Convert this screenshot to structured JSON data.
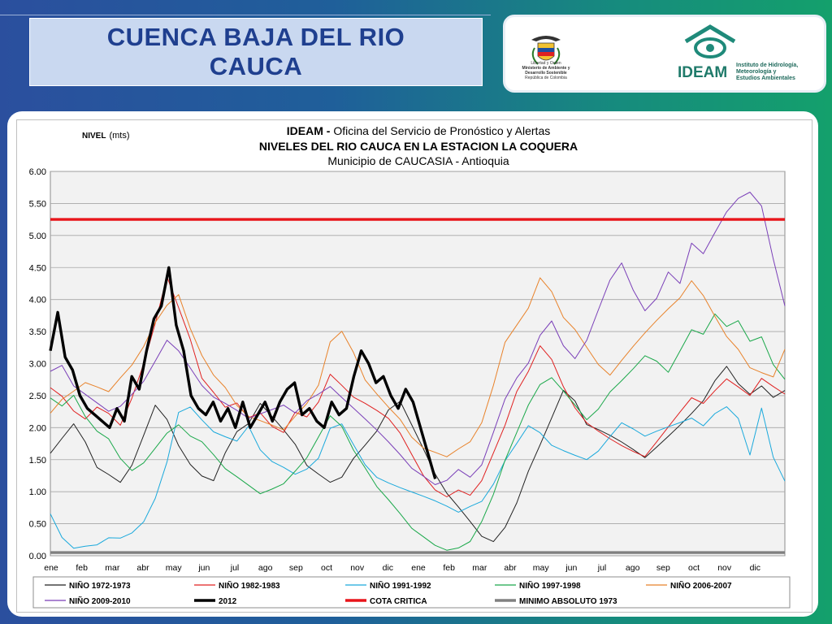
{
  "slide": {
    "title_line1": "CUENCA  BAJA  DEL RIO",
    "title_line2": "CAUCA",
    "logo_left_caption": [
      "Libertad y Orden",
      "Ministerio de Ambiente y",
      "Desarrollo Sostenible",
      "República de Colombia"
    ],
    "logo_right_word": "IDEAM",
    "logo_right_sub": [
      "Instituto de Hidrología,",
      "Meteorología y",
      "Estudios Ambientales"
    ]
  },
  "colors": {
    "title_text": "#1f3f8f",
    "title_box": "#c9d8f0",
    "cota_critica": "#e8141a",
    "series_2012": "#000000"
  },
  "chart_data": {
    "type": "line",
    "title_prefix": "IDEAM - ",
    "title_rest": "Oficina del Servicio de Pronóstico y Alertas",
    "subtitle": "NIVELES DEL RIO CAUCA EN LA ESTACION LA COQUERA",
    "subtitle2": "Municipio de CAUCASIA - Antioquia",
    "ylabel_bold": "NIVEL",
    "ylabel_unit": "(mts)",
    "ylim": [
      0,
      6
    ],
    "yticks": [
      "6.00",
      "5.50",
      "5.00",
      "4.50",
      "4.00",
      "3.50",
      "3.00",
      "2.50",
      "2.00",
      "1.50",
      "1.00",
      "0.50",
      "0.00"
    ],
    "xticks": [
      "ene",
      "feb",
      "mar",
      "abr",
      "may",
      "jun",
      "jul",
      "ago",
      "sep",
      "oct",
      "nov",
      "dic",
      "ene",
      "feb",
      "mar",
      "abr",
      "may",
      "jun",
      "jul",
      "ago",
      "sep",
      "oct",
      "nov",
      "dic"
    ],
    "grid": true,
    "legend_placement": "bottom",
    "series": [
      {
        "name": "NIÑO 1972-1973",
        "color": "#222222",
        "width": 1,
        "values": [
          1.6,
          1.8,
          2.0,
          1.7,
          1.3,
          1.2,
          1.1,
          1.4,
          1.9,
          2.4,
          2.2,
          1.8,
          1.5,
          1.3,
          1.2,
          1.6,
          1.9,
          2.0,
          2.3,
          2.1,
          1.9,
          1.7,
          1.4,
          1.3,
          1.2,
          1.3,
          1.6,
          1.8,
          2.0,
          2.3,
          2.4,
          2.0,
          1.6,
          1.2,
          0.9,
          0.7,
          0.5,
          0.3,
          0.25,
          0.5,
          0.9,
          1.4,
          1.8,
          2.2,
          2.6,
          2.4,
          2.0,
          1.9,
          1.8,
          1.7,
          1.6,
          1.5,
          1.7,
          1.9,
          2.1,
          2.3,
          2.5,
          2.8,
          3.0,
          2.7,
          2.5,
          2.6,
          2.4,
          2.5
        ]
      },
      {
        "name": "NIÑO 1982-1983",
        "color": "#e02020",
        "width": 1,
        "values": [
          2.6,
          2.5,
          2.3,
          2.2,
          2.4,
          2.3,
          2.1,
          2.5,
          3.0,
          3.6,
          4.3,
          3.8,
          3.3,
          2.7,
          2.5,
          2.3,
          2.4,
          2.2,
          2.3,
          2.1,
          2.0,
          2.3,
          2.2,
          2.4,
          2.8,
          2.6,
          2.4,
          2.3,
          2.2,
          2.1,
          1.9,
          1.6,
          1.3,
          1.1,
          1.0,
          1.1,
          1.0,
          1.2,
          1.6,
          2.0,
          2.5,
          2.8,
          3.2,
          3.0,
          2.6,
          2.3,
          2.1,
          2.0,
          1.9,
          1.8,
          1.7,
          1.6,
          1.8,
          2.0,
          2.2,
          2.4,
          2.3,
          2.5,
          2.7,
          2.6,
          2.5,
          2.8,
          2.7,
          2.6
        ]
      },
      {
        "name": "NIÑO 1991-1992",
        "color": "#1aa9dc",
        "width": 1,
        "values": [
          0.7,
          0.3,
          0.1,
          0.1,
          0.1,
          0.2,
          0.2,
          0.3,
          0.5,
          0.9,
          1.5,
          2.3,
          2.4,
          2.2,
          2.0,
          1.9,
          1.8,
          2.0,
          1.6,
          1.4,
          1.3,
          1.2,
          1.3,
          1.5,
          2.0,
          2.1,
          1.8,
          1.5,
          1.3,
          1.2,
          1.1,
          1.0,
          0.9,
          0.8,
          0.7,
          0.6,
          0.7,
          0.8,
          1.1,
          1.5,
          1.8,
          2.1,
          2.0,
          1.8,
          1.7,
          1.6,
          1.5,
          1.6,
          1.8,
          2.0,
          1.9,
          1.8,
          1.9,
          2.0,
          2.1,
          2.2,
          2.1,
          2.3,
          2.4,
          2.2,
          1.6,
          2.3,
          1.5,
          1.1
        ]
      },
      {
        "name": "NIÑO 1997-1998",
        "color": "#1aa84a",
        "width": 1,
        "values": [
          2.4,
          2.3,
          2.5,
          2.2,
          2.0,
          1.9,
          1.6,
          1.4,
          1.5,
          1.7,
          1.9,
          2.0,
          1.8,
          1.7,
          1.5,
          1.3,
          1.2,
          1.1,
          1.0,
          1.1,
          1.2,
          1.4,
          1.6,
          1.9,
          2.2,
          2.0,
          1.6,
          1.3,
          1.0,
          0.8,
          0.6,
          0.4,
          0.3,
          0.2,
          0.15,
          0.2,
          0.3,
          0.6,
          1.0,
          1.5,
          1.9,
          2.3,
          2.6,
          2.7,
          2.5,
          2.3,
          2.1,
          2.3,
          2.6,
          2.8,
          3.0,
          3.2,
          3.1,
          2.9,
          3.2,
          3.5,
          3.4,
          3.7,
          3.5,
          3.6,
          3.3,
          3.4,
          3.0,
          2.8
        ]
      },
      {
        "name": "NIÑO 2006-2007",
        "color": "#e8822a",
        "width": 1,
        "values": [
          2.3,
          2.5,
          2.6,
          2.7,
          2.6,
          2.5,
          2.7,
          2.9,
          3.2,
          3.6,
          3.9,
          4.1,
          3.6,
          3.2,
          2.9,
          2.7,
          2.4,
          2.2,
          2.1,
          2.0,
          1.9,
          2.1,
          2.3,
          2.6,
          3.3,
          3.5,
          3.2,
          2.8,
          2.6,
          2.4,
          2.2,
          1.9,
          1.7,
          1.6,
          1.5,
          1.6,
          1.7,
          2.0,
          2.6,
          3.3,
          3.6,
          3.9,
          4.4,
          4.2,
          3.8,
          3.6,
          3.3,
          3.0,
          2.8,
          3.0,
          3.2,
          3.4,
          3.6,
          3.8,
          4.0,
          4.3,
          4.1,
          3.8,
          3.5,
          3.3,
          3.0,
          2.9,
          2.8,
          3.2
        ]
      },
      {
        "name": "NIÑO 2009-2010",
        "color": "#7a3fb8",
        "width": 1,
        "values": [
          2.8,
          2.9,
          2.6,
          2.5,
          2.4,
          2.3,
          2.4,
          2.6,
          2.8,
          3.1,
          3.4,
          3.2,
          2.9,
          2.6,
          2.4,
          2.3,
          2.2,
          2.1,
          2.2,
          2.3,
          2.4,
          2.3,
          2.5,
          2.6,
          2.7,
          2.5,
          2.3,
          2.1,
          1.9,
          1.7,
          1.5,
          1.3,
          1.2,
          1.1,
          1.2,
          1.4,
          1.3,
          1.5,
          2.0,
          2.5,
          2.8,
          3.0,
          3.4,
          3.6,
          3.2,
          3.0,
          3.3,
          3.8,
          4.3,
          4.6,
          4.2,
          3.9,
          4.1,
          4.5,
          4.3,
          4.9,
          4.7,
          5.0,
          5.3,
          5.5,
          5.6,
          5.4,
          4.6,
          3.9
        ]
      },
      {
        "name": "2012",
        "color": "#000000",
        "width": 3.4,
        "values": [
          3.2,
          3.8,
          3.1,
          2.9,
          2.5,
          2.3,
          2.2,
          2.1,
          2.0,
          2.3,
          2.1,
          2.8,
          2.6,
          3.2,
          3.7,
          3.9,
          4.5,
          3.6,
          3.2,
          2.5,
          2.3,
          2.2,
          2.4,
          2.1,
          2.3,
          2.0,
          2.4,
          2.0,
          2.2,
          2.4,
          2.1,
          2.4,
          2.6,
          2.7,
          2.2,
          2.3,
          2.1,
          2.0,
          2.4,
          2.2,
          2.3,
          2.8,
          3.2,
          3.0,
          2.7,
          2.8,
          2.5,
          2.3,
          2.6,
          2.4,
          2.0,
          1.6,
          1.2
        ]
      },
      {
        "name": "COTA CRITICA",
        "color": "#e8141a",
        "width": 3.4,
        "values": [
          5.25,
          5.25
        ]
      },
      {
        "name": "MINIMO ABSOLUTO 1973",
        "color": "#808080",
        "width": 3.4,
        "values": [
          0.05,
          0.05
        ]
      }
    ]
  }
}
